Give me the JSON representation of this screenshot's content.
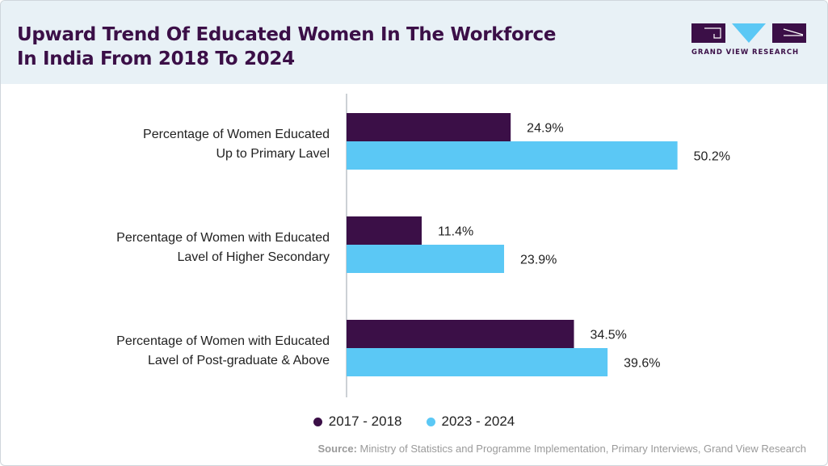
{
  "header": {
    "title_line1": "Upward Trend Of Educated Women In The Workforce",
    "title_line2": "In India From 2018 To 2024"
  },
  "logo": {
    "icon_name": "grand-view-research-logo-icon",
    "text": "GRAND VIEW RESEARCH"
  },
  "colors": {
    "series_2017_2018": "#3b0f47",
    "series_2023_2024": "#5bc8f5",
    "header_bg": "#e8f1f6"
  },
  "chart_data": {
    "type": "bar",
    "orientation": "horizontal",
    "title": "Upward Trend Of Educated Women In The Workforce In India From 2018 To 2024",
    "categories": [
      [
        "Percentage of Women Educated",
        "Up to Primary Lavel"
      ],
      [
        "Percentage of Women with Educated",
        "Lavel of Higher Secondary"
      ],
      [
        "Percentage of Women with Educated",
        "Lavel of Post-graduate & Above"
      ]
    ],
    "series": [
      {
        "name": "2017 - 2018",
        "values": [
          24.9,
          11.4,
          34.5
        ],
        "labels": [
          "24.9%",
          "11.4%",
          "34.5%"
        ],
        "color": "#3b0f47"
      },
      {
        "name": "2023 - 2024",
        "values": [
          50.2,
          23.9,
          39.6
        ],
        "labels": [
          "50.2%",
          "23.9%",
          "39.6%"
        ],
        "color": "#5bc8f5"
      }
    ],
    "xlim": [
      0,
      60
    ],
    "grid": false,
    "legend_position": "bottom-center"
  },
  "footer": {
    "source_label": "Source:",
    "source_text": " Ministry of Statistics and Programme Implementation, Primary Interviews, Grand View Research"
  }
}
